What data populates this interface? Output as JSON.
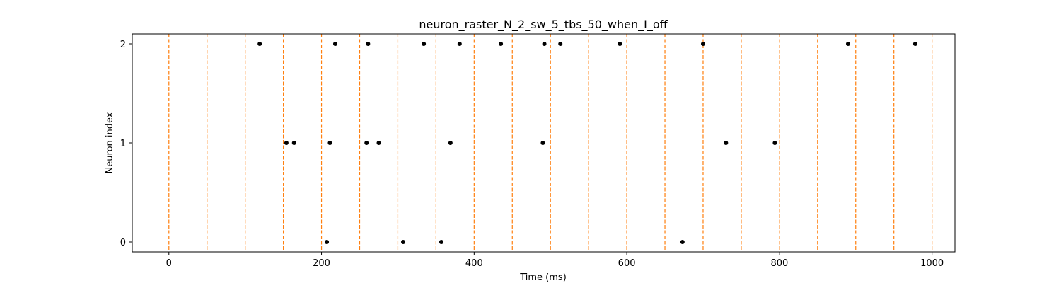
{
  "chart_data": {
    "type": "scatter",
    "title": "neuron_raster_N_2_sw_5_tbs_50_when_I_off",
    "xlabel": "Time (ms)",
    "ylabel": "Neuron index",
    "xlim": [
      -48,
      1030
    ],
    "ylim": [
      -0.1,
      2.1
    ],
    "xticks": [
      0,
      200,
      400,
      600,
      800,
      1000
    ],
    "yticks": [
      0,
      1,
      2
    ],
    "grid": false,
    "series": [
      {
        "marker_color": "#000000",
        "points": [
          {
            "x": 207,
            "y": 0
          },
          {
            "x": 307,
            "y": 0
          },
          {
            "x": 357,
            "y": 0
          },
          {
            "x": 673,
            "y": 0
          },
          {
            "x": 154,
            "y": 1
          },
          {
            "x": 164,
            "y": 1
          },
          {
            "x": 211,
            "y": 1
          },
          {
            "x": 259,
            "y": 1
          },
          {
            "x": 275,
            "y": 1
          },
          {
            "x": 369,
            "y": 1
          },
          {
            "x": 490,
            "y": 1
          },
          {
            "x": 730,
            "y": 1
          },
          {
            "x": 794,
            "y": 1
          },
          {
            "x": 119,
            "y": 2
          },
          {
            "x": 218,
            "y": 2
          },
          {
            "x": 261,
            "y": 2
          },
          {
            "x": 334,
            "y": 2
          },
          {
            "x": 381,
            "y": 2
          },
          {
            "x": 435,
            "y": 2
          },
          {
            "x": 492,
            "y": 2
          },
          {
            "x": 513,
            "y": 2
          },
          {
            "x": 591,
            "y": 2
          },
          {
            "x": 700,
            "y": 2
          },
          {
            "x": 890,
            "y": 2
          },
          {
            "x": 978,
            "y": 2
          }
        ]
      }
    ],
    "vlines": {
      "color": "#ff7f0e",
      "style": "dashed",
      "x": [
        0,
        50,
        100,
        150,
        200,
        250,
        300,
        350,
        400,
        450,
        500,
        550,
        600,
        650,
        700,
        750,
        800,
        850,
        900,
        950,
        1000
      ]
    }
  }
}
